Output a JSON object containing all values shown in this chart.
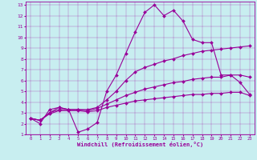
{
  "title": "",
  "xlabel": "Windchill (Refroidissement éolien,°C)",
  "ylabel": "",
  "bg_color": "#c8eef0",
  "line_color": "#990099",
  "xlim": [
    -0.5,
    23.5
  ],
  "ylim": [
    1,
    13.3
  ],
  "xticks": [
    0,
    1,
    2,
    3,
    4,
    5,
    6,
    7,
    8,
    9,
    10,
    11,
    12,
    13,
    14,
    15,
    16,
    17,
    18,
    19,
    20,
    21,
    22,
    23
  ],
  "yticks": [
    1,
    2,
    3,
    4,
    5,
    6,
    7,
    8,
    9,
    10,
    11,
    12,
    13
  ],
  "series": [
    {
      "x": [
        0,
        1,
        2,
        3,
        4,
        5,
        6,
        7,
        8,
        9,
        10,
        11,
        12,
        13,
        14,
        15,
        16,
        17,
        18,
        19,
        20,
        21,
        22,
        23
      ],
      "y": [
        2.5,
        2.0,
        3.3,
        3.5,
        3.3,
        1.2,
        1.5,
        2.1,
        5.0,
        6.5,
        8.5,
        10.5,
        12.3,
        13.0,
        12.0,
        12.5,
        11.5,
        9.8,
        9.5,
        9.5,
        6.5,
        6.5,
        5.8,
        4.7
      ]
    },
    {
      "x": [
        0,
        1,
        2,
        3,
        4,
        5,
        6,
        7,
        8,
        9,
        10,
        11,
        12,
        13,
        14,
        15,
        16,
        17,
        18,
        19,
        20,
        21,
        22,
        23
      ],
      "y": [
        2.5,
        2.3,
        3.0,
        3.5,
        3.3,
        3.3,
        3.3,
        3.5,
        4.2,
        5.0,
        6.0,
        6.8,
        7.2,
        7.5,
        7.8,
        8.0,
        8.3,
        8.5,
        8.7,
        8.8,
        8.9,
        9.0,
        9.1,
        9.2
      ]
    },
    {
      "x": [
        0,
        1,
        2,
        3,
        4,
        5,
        6,
        7,
        8,
        9,
        10,
        11,
        12,
        13,
        14,
        15,
        16,
        17,
        18,
        19,
        20,
        21,
        22,
        23
      ],
      "y": [
        2.5,
        2.3,
        3.0,
        3.3,
        3.3,
        3.3,
        3.2,
        3.4,
        3.8,
        4.2,
        4.6,
        4.9,
        5.2,
        5.4,
        5.6,
        5.8,
        5.9,
        6.1,
        6.2,
        6.3,
        6.3,
        6.5,
        6.5,
        6.3
      ]
    },
    {
      "x": [
        0,
        1,
        2,
        3,
        4,
        5,
        6,
        7,
        8,
        9,
        10,
        11,
        12,
        13,
        14,
        15,
        16,
        17,
        18,
        19,
        20,
        21,
        22,
        23
      ],
      "y": [
        2.5,
        2.3,
        2.9,
        3.2,
        3.2,
        3.2,
        3.1,
        3.2,
        3.5,
        3.7,
        3.9,
        4.1,
        4.2,
        4.3,
        4.4,
        4.5,
        4.6,
        4.7,
        4.7,
        4.8,
        4.8,
        4.9,
        4.9,
        4.6
      ]
    }
  ]
}
